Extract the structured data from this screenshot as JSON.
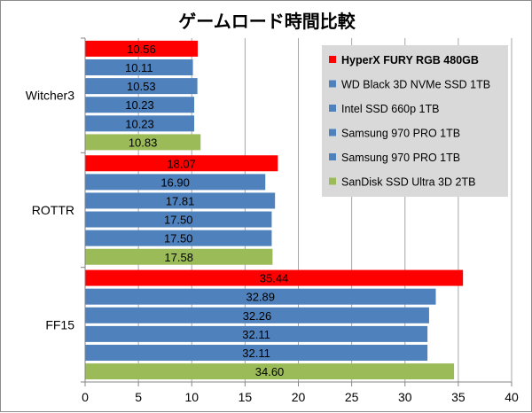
{
  "chart_data": {
    "type": "bar",
    "orientation": "horizontal",
    "title": "ゲームロード時間比較",
    "categories": [
      "Witcher3",
      "ROTTR",
      "FF15"
    ],
    "series": [
      {
        "name": "HyperX FURY RGB 480GB",
        "color": "#ff0000",
        "values": [
          10.56,
          18.07,
          35.44
        ],
        "labels": [
          "10.56",
          "18.07",
          "35.44"
        ]
      },
      {
        "name": "WD Black 3D NVMe SSD 1TB",
        "color": "#4f81bd",
        "values": [
          10.11,
          16.9,
          32.89
        ],
        "labels": [
          "10.11",
          "16.90",
          "32.89"
        ]
      },
      {
        "name": "Intel SSD 660p 1TB",
        "color": "#4f81bd",
        "values": [
          10.53,
          17.81,
          32.26
        ],
        "labels": [
          "10.53",
          "17.81",
          "32.26"
        ]
      },
      {
        "name": "Samsung 970 PRO 1TB",
        "color": "#4f81bd",
        "values": [
          10.23,
          17.5,
          32.11
        ],
        "labels": [
          "10.23",
          "17.50",
          "32.11"
        ]
      },
      {
        "name": "Samsung 970 PRO 1TB",
        "color": "#4f81bd",
        "values": [
          10.23,
          17.5,
          32.11
        ],
        "labels": [
          "10.23",
          "17.50",
          "32.11"
        ]
      },
      {
        "name": "SanDisk SSD Ultra 3D 2TB",
        "color": "#9bbb59",
        "values": [
          10.83,
          17.58,
          34.6
        ],
        "labels": [
          "10.83",
          "17.58",
          "34.60"
        ]
      }
    ],
    "xlim": [
      0,
      40
    ],
    "xticks": [
      "0",
      "5",
      "10",
      "15",
      "20",
      "25",
      "30",
      "35",
      "40"
    ],
    "grid": "vertical",
    "legend": {
      "position": "right-top",
      "background": "#d9d9d9",
      "bold_first_entry": true
    },
    "colors": {
      "gridline": "#a6a6a6",
      "axis": "#868686"
    }
  }
}
